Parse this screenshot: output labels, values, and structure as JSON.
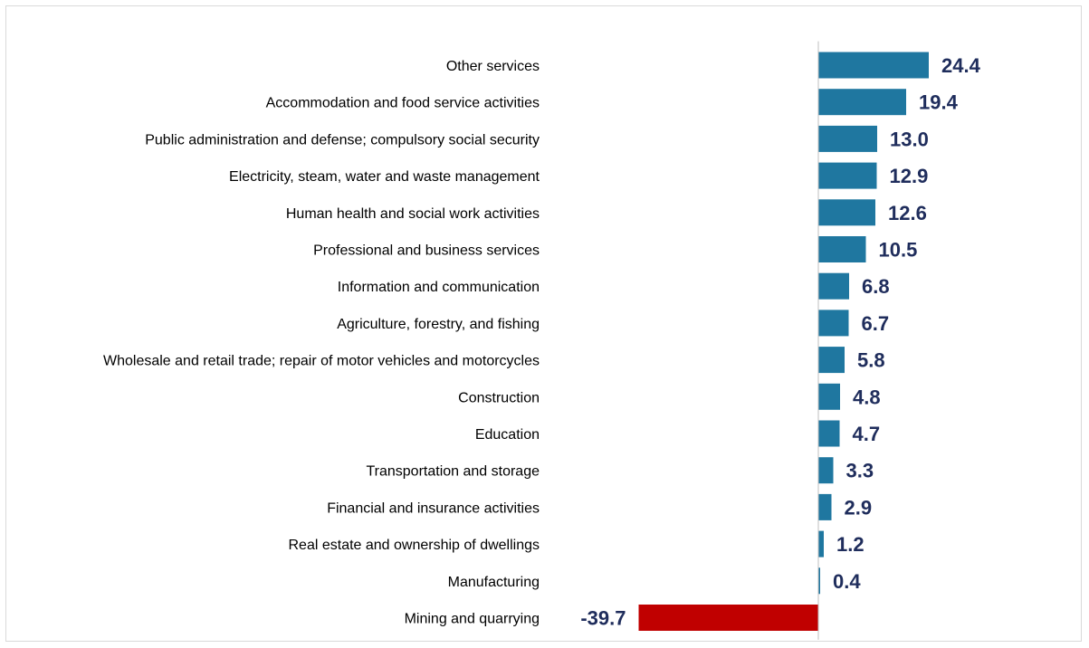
{
  "chart_data": {
    "type": "bar",
    "orientation": "horizontal",
    "title": "",
    "xlabel": "",
    "ylabel": "",
    "categories": [
      "Other services",
      "Accommodation and food service activities",
      "Public administration and defense; compulsory social security",
      "Electricity, steam, water and waste management",
      "Human health and social work activities",
      "Professional and business services",
      "Information and communication",
      "Agriculture, forestry, and fishing",
      "Wholesale and retail trade; repair of motor vehicles and motorcycles",
      "Construction",
      "Education",
      "Transportation and storage",
      "Financial and insurance activities",
      "Real estate and ownership of dwellings",
      "Manufacturing",
      "Mining and quarrying"
    ],
    "values": [
      24.4,
      19.4,
      13.0,
      12.9,
      12.6,
      10.5,
      6.8,
      6.7,
      5.8,
      4.8,
      4.7,
      3.3,
      2.9,
      1.2,
      0.4,
      -39.7
    ],
    "value_labels": [
      "24.4",
      "19.4",
      "13.0",
      "12.9",
      "12.6",
      "10.5",
      "6.8",
      "6.7",
      "5.8",
      "4.8",
      "4.7",
      "3.3",
      "2.9",
      "1.2",
      "0.4",
      "-39.7"
    ],
    "xlim": [
      -39.7,
      24.4
    ],
    "grid": false,
    "legend": "none",
    "colors": {
      "positive": "#1f77a0",
      "negative": "#c00000",
      "value_text": "#1f2d5c",
      "axis": "#bfbfbf"
    }
  }
}
